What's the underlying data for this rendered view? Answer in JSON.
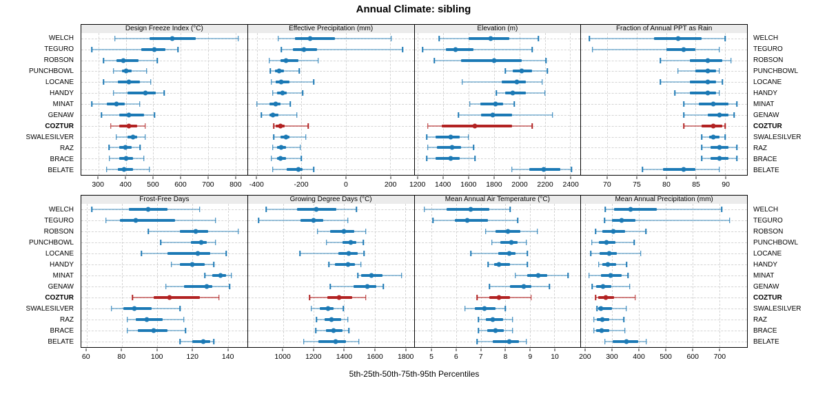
{
  "colors": {
    "series": "#1b79b5",
    "series_light": "rgba(27,121,181,0.42)",
    "highlight": "#b22222",
    "highlight_light": "rgba(178,34,34,0.55)",
    "strip_bg": "#ebebeb",
    "grid": "#d4d4d4",
    "border": "#000000"
  },
  "chart_data": {
    "type": "dot-interval percentile plot (lattice-style trellis)",
    "title": "Annual Climate: sibling",
    "xlabel": "5th-25th-50th-75th-95th Percentiles",
    "percentiles": [
      5,
      25,
      50,
      75,
      95
    ],
    "grid": "dashed both axes",
    "layout": "2 rows x 4 panels, station labels on left and right",
    "stations": [
      "WELCH",
      "TEGURO",
      "ROBSON",
      "PUNCHBOWL",
      "LOCANE",
      "HANDY",
      "MINAT",
      "GENAW",
      "COZTUR",
      "SWALESILVER",
      "RAZ",
      "BRACE",
      "BELATE"
    ],
    "highlight_station": "COZTUR",
    "panels": [
      {
        "label": "Design Freeze Index (°C)",
        "xlim": [
          237,
          843
        ],
        "ticks": [
          300,
          400,
          500,
          600,
          700,
          800
        ],
        "values": [
          [
            360,
            485,
            570,
            655,
            810
          ],
          [
            275,
            455,
            505,
            545,
            590
          ],
          [
            318,
            365,
            390,
            445,
            515
          ],
          [
            355,
            385,
            400,
            420,
            475
          ],
          [
            318,
            370,
            410,
            450,
            490
          ],
          [
            355,
            405,
            470,
            510,
            540
          ],
          [
            275,
            330,
            365,
            395,
            450
          ],
          [
            310,
            375,
            410,
            465,
            505
          ],
          [
            345,
            375,
            410,
            440,
            470
          ],
          [
            365,
            405,
            425,
            440,
            470
          ],
          [
            338,
            375,
            398,
            420,
            452
          ],
          [
            340,
            375,
            400,
            425,
            465
          ],
          [
            330,
            370,
            393,
            425,
            485
          ]
        ]
      },
      {
        "label": "Effective Precipitation (mm)",
        "xlim": [
          -441,
          306
        ],
        "ticks": [
          -400,
          -200,
          0,
          200
        ],
        "values": [
          [
            -305,
            -230,
            -160,
            -50,
            205
          ],
          [
            -290,
            -240,
            -190,
            -130,
            255
          ],
          [
            -345,
            -295,
            -270,
            -215,
            -125
          ],
          [
            -340,
            -320,
            -300,
            -280,
            -210
          ],
          [
            -335,
            -315,
            -290,
            -255,
            -145
          ],
          [
            -330,
            -310,
            -285,
            -265,
            -195
          ],
          [
            -400,
            -345,
            -315,
            -295,
            -250
          ],
          [
            -380,
            -345,
            -330,
            -305,
            -220
          ],
          [
            -325,
            -315,
            -295,
            -275,
            -170
          ],
          [
            -325,
            -295,
            -270,
            -255,
            -180
          ],
          [
            -330,
            -310,
            -290,
            -270,
            -205
          ],
          [
            -335,
            -310,
            -295,
            -270,
            -200
          ],
          [
            -330,
            -265,
            -215,
            -195,
            -145
          ]
        ]
      },
      {
        "label": "Elevation (m)",
        "xlim": [
          1175,
          2480
        ],
        "ticks": [
          1200,
          1400,
          1600,
          1800,
          2000,
          2200,
          2400
        ],
        "values": [
          [
            1370,
            1600,
            1775,
            1920,
            2150
          ],
          [
            1240,
            1420,
            1500,
            1640,
            2100
          ],
          [
            1330,
            1540,
            1800,
            2020,
            2210
          ],
          [
            1890,
            1950,
            2020,
            2100,
            2220
          ],
          [
            1550,
            1860,
            1980,
            2050,
            2180
          ],
          [
            1820,
            1890,
            1950,
            2050,
            2200
          ],
          [
            1610,
            1690,
            1810,
            1870,
            1960
          ],
          [
            1520,
            1700,
            1790,
            1940,
            2260
          ],
          [
            1280,
            1390,
            1650,
            1940,
            2100
          ],
          [
            1270,
            1340,
            1460,
            1530,
            1600
          ],
          [
            1280,
            1350,
            1470,
            1540,
            1640
          ],
          [
            1270,
            1340,
            1460,
            1530,
            1650
          ],
          [
            1940,
            2080,
            2190,
            2320,
            2410
          ]
        ]
      },
      {
        "label": "Fraction of Annual PPT as Rain",
        "xlim": [
          65.6,
          93.7
        ],
        "ticks": [
          70,
          75,
          80,
          85,
          90
        ],
        "values": [
          [
            67,
            78,
            82,
            86,
            90
          ],
          [
            67.5,
            80,
            83,
            85,
            89
          ],
          [
            79,
            84,
            87,
            89.5,
            91
          ],
          [
            82,
            85,
            87,
            88.5,
            89
          ],
          [
            79,
            84,
            87,
            88.5,
            89.5
          ],
          [
            81.5,
            84,
            87,
            88.5,
            89
          ],
          [
            83,
            85.5,
            88,
            90.5,
            92
          ],
          [
            83,
            87,
            89,
            90.5,
            91.5
          ],
          [
            83,
            86,
            88,
            89.5,
            90
          ],
          [
            86,
            87.3,
            88,
            89,
            90
          ],
          [
            86,
            87.5,
            89,
            90.5,
            92
          ],
          [
            86,
            87.5,
            89,
            90.5,
            92
          ],
          [
            76,
            79.5,
            83,
            85,
            89
          ]
        ]
      },
      {
        "label": "Frost-Free Days",
        "xlim": [
          57,
          151
        ],
        "ticks": [
          60,
          80,
          100,
          120,
          140
        ],
        "values": [
          [
            63,
            84,
            95,
            106,
            124
          ],
          [
            71,
            79,
            88,
            110,
            133
          ],
          [
            95,
            113,
            122,
            129,
            146
          ],
          [
            102,
            119,
            125,
            128,
            133
          ],
          [
            91,
            106,
            123,
            130,
            139
          ],
          [
            108,
            113,
            120,
            127,
            132
          ],
          [
            127,
            131,
            136,
            139,
            142
          ],
          [
            105,
            115,
            128,
            131,
            141
          ],
          [
            86,
            98,
            107,
            124,
            135
          ],
          [
            74,
            81,
            87,
            97,
            113
          ],
          [
            83,
            88,
            94,
            103,
            115
          ],
          [
            83,
            89,
            98,
            106,
            116
          ],
          [
            113,
            120,
            126,
            130,
            132
          ]
        ]
      },
      {
        "label": "Growing Degree Days (°C)",
        "xlim": [
          771,
          1855
        ],
        "ticks": [
          1000,
          1200,
          1400,
          1600,
          1800
        ],
        "values": [
          [
            890,
            1090,
            1220,
            1350,
            1480
          ],
          [
            840,
            1115,
            1200,
            1265,
            1425
          ],
          [
            1225,
            1310,
            1400,
            1465,
            1540
          ],
          [
            1285,
            1390,
            1445,
            1480,
            1525
          ],
          [
            1110,
            1360,
            1430,
            1490,
            1530
          ],
          [
            1300,
            1340,
            1425,
            1470,
            1510
          ],
          [
            1490,
            1510,
            1580,
            1650,
            1775
          ],
          [
            1310,
            1460,
            1550,
            1610,
            1655
          ],
          [
            1175,
            1290,
            1365,
            1450,
            1540
          ],
          [
            1185,
            1240,
            1295,
            1330,
            1395
          ],
          [
            1220,
            1270,
            1315,
            1380,
            1425
          ],
          [
            1215,
            1280,
            1330,
            1390,
            1430
          ],
          [
            1135,
            1230,
            1345,
            1410,
            1495
          ]
        ]
      },
      {
        "label": "Mean Annual Air Temperature (°C)",
        "xlim": [
          4.3,
          11.06
        ],
        "ticks": [
          5,
          6,
          7,
          8,
          9,
          10
        ],
        "values": [
          [
            4.7,
            5.6,
            6.6,
            7.35,
            8.2
          ],
          [
            5.05,
            5.95,
            6.45,
            7.3,
            8.5
          ],
          [
            7.2,
            7.6,
            8.1,
            8.6,
            9.3
          ],
          [
            7.45,
            7.8,
            8.25,
            8.5,
            8.85
          ],
          [
            6.6,
            7.7,
            8.15,
            8.4,
            8.9
          ],
          [
            7.3,
            7.55,
            7.75,
            8.2,
            8.9
          ],
          [
            8.4,
            8.9,
            9.35,
            9.7,
            10.55
          ],
          [
            7.35,
            8.2,
            8.75,
            9.05,
            9.8
          ],
          [
            6.85,
            7.35,
            7.75,
            8.2,
            9.05
          ],
          [
            6.35,
            6.75,
            7.15,
            7.6,
            8.0
          ],
          [
            6.9,
            7.2,
            7.5,
            7.9,
            8.3
          ],
          [
            6.9,
            7.25,
            7.6,
            7.95,
            8.3
          ],
          [
            6.85,
            7.5,
            8.15,
            8.55,
            8.85
          ]
        ]
      },
      {
        "label": "Mean Annual Precipitation (mm)",
        "xlim": [
          185,
          804
        ],
        "ticks": [
          200,
          300,
          400,
          500,
          600,
          700
        ],
        "values": [
          [
            275,
            307,
            370,
            467,
            710
          ],
          [
            272,
            299,
            337,
            387,
            739
          ],
          [
            239,
            263,
            304,
            350,
            427
          ],
          [
            225,
            251,
            280,
            313,
            383
          ],
          [
            221,
            253,
            289,
            319,
            407
          ],
          [
            250,
            265,
            285,
            315,
            355
          ],
          [
            215,
            258,
            296,
            336,
            360
          ],
          [
            226,
            241,
            267,
            297,
            366
          ],
          [
            239,
            249,
            276,
            307,
            387
          ],
          [
            244,
            248,
            260,
            299,
            354
          ],
          [
            233,
            243,
            263,
            290,
            344
          ],
          [
            233,
            241,
            262,
            289,
            348
          ],
          [
            274,
            303,
            354,
            397,
            428
          ]
        ]
      }
    ]
  }
}
